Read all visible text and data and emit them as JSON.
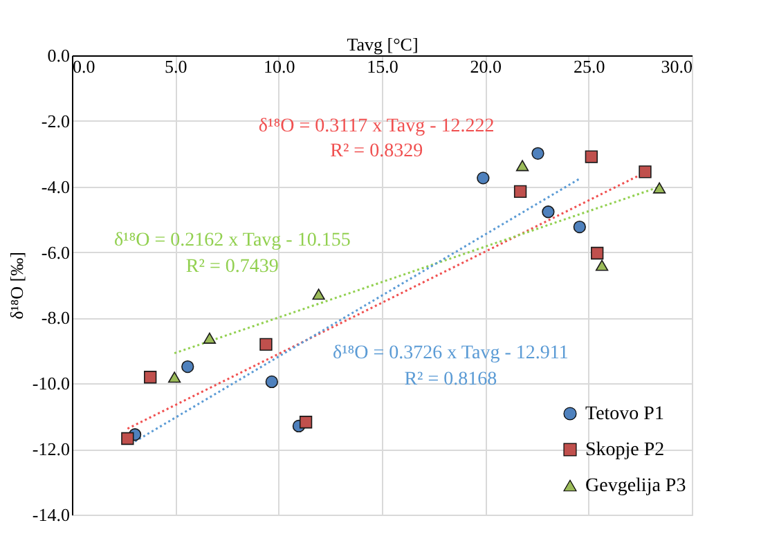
{
  "chart_data": {
    "type": "scatter",
    "xlabel": "Tavg [°C]",
    "ylabel": "δ¹⁸O [‰]",
    "xlim": [
      0,
      30
    ],
    "ylim": [
      -14,
      0
    ],
    "xticks": [
      {
        "value": 0,
        "label": "0.0"
      },
      {
        "value": 5,
        "label": "5.0"
      },
      {
        "value": 10,
        "label": "10.0"
      },
      {
        "value": 15,
        "label": "15.0"
      },
      {
        "value": 20,
        "label": "20.0"
      },
      {
        "value": 25,
        "label": "25.0"
      },
      {
        "value": 30,
        "label": "30.0"
      }
    ],
    "yticks": [
      {
        "value": -14,
        "label": "-14.0"
      },
      {
        "value": -12,
        "label": "-12.0"
      },
      {
        "value": -10,
        "label": "-10.0"
      },
      {
        "value": -8,
        "label": "-8.0"
      },
      {
        "value": -6,
        "label": "-6.0"
      },
      {
        "value": -4,
        "label": "-4.0"
      },
      {
        "value": -2,
        "label": "-2.0"
      },
      {
        "value": 0,
        "label": "0.0"
      }
    ],
    "grid": true,
    "legend": "bottom right",
    "series": [
      {
        "name": "Tetovo P1",
        "color": "#4f81bd",
        "marker": "circle",
        "x": [
          19.9,
          22.55,
          23.05,
          24.57,
          5.6,
          9.67,
          10.98,
          3.05
        ],
        "values": [
          -3.74,
          -2.99,
          -4.77,
          -5.23,
          -9.49,
          -9.95,
          -11.3,
          -11.56
        ]
      },
      {
        "name": "Skopje P2",
        "color": "#c0504d",
        "marker": "square",
        "x": [
          21.7,
          25.14,
          27.74,
          25.42,
          3.79,
          9.39,
          11.32,
          2.69
        ],
        "values": [
          -4.15,
          -3.09,
          -3.55,
          -6.03,
          -9.81,
          -8.81,
          -11.18,
          -11.68
        ]
      },
      {
        "name": "Gevgelija P3",
        "color": "#9bbb59",
        "marker": "triangle",
        "x": [
          21.8,
          28.43,
          25.65,
          11.94,
          6.66,
          4.96
        ],
        "values": [
          -3.36,
          -4.04,
          -6.4,
          -7.28,
          -8.62,
          -9.81
        ]
      },
      {
        "type": "line",
        "color": "#f05050",
        "line_style": "dotted",
        "marker": "none",
        "x": [
          2.69,
          27.74
        ],
        "values": [
          -11.38,
          -3.57
        ]
      },
      {
        "type": "line",
        "color": "#92d050",
        "line_style": "dotted",
        "marker": "none",
        "x": [
          4.96,
          28.43
        ],
        "values": [
          -9.08,
          -4.01
        ]
      },
      {
        "type": "line",
        "color": "#5b9bd5",
        "line_style": "dotted",
        "marker": "none",
        "x": [
          3.05,
          24.57
        ],
        "values": [
          -11.77,
          -3.76
        ]
      }
    ],
    "annotations": [
      "δ¹⁸O = 0.3117 x Tavg - 12.222",
      "R² = 0.8329",
      "δ¹⁸O = 0.2162 x Tavg - 10.155",
      "R² = 0.7439",
      "δ¹⁸O = 0.3726 x Tavg - 12.911",
      "R² = 0.8168"
    ]
  }
}
